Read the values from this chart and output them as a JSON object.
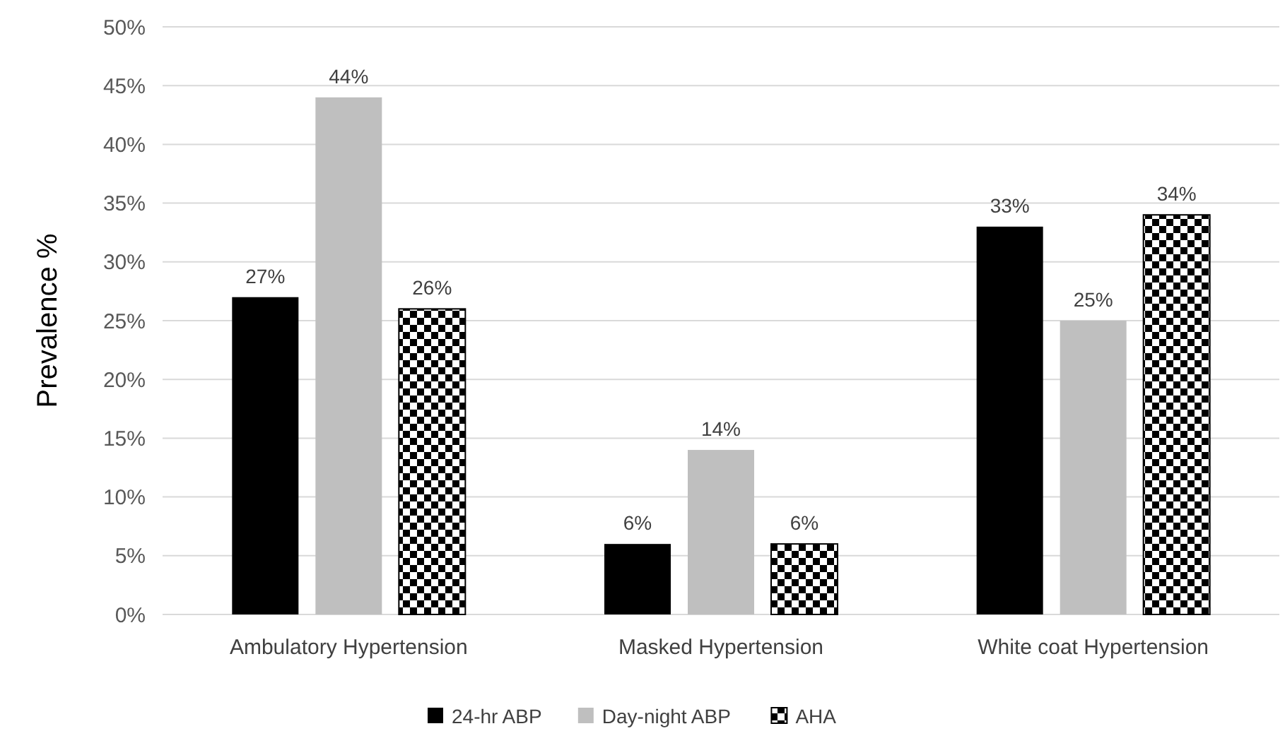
{
  "chart_data": {
    "type": "bar",
    "ylabel": "Prevalence %",
    "categories": [
      "Ambulatory Hypertension",
      "Masked Hypertension",
      "White coat Hypertension"
    ],
    "series": [
      {
        "name": "24-hr ABP",
        "color": "#000000",
        "values": [
          27,
          6,
          33
        ],
        "value_labels": [
          "27%",
          "6%",
          "33%"
        ]
      },
      {
        "name": "Day-night ABP",
        "color": "#bfbfbf",
        "values": [
          44,
          14,
          25
        ],
        "value_labels": [
          "44%",
          "14%",
          "25%"
        ]
      },
      {
        "name": "AHA",
        "color": "#000000",
        "values": [
          26,
          6,
          34
        ],
        "value_labels": [
          "26%",
          "6%",
          "34%"
        ]
      }
    ],
    "ylim": [
      0,
      50
    ],
    "yticks": [
      {
        "value": 0,
        "label": "0%"
      },
      {
        "value": 5,
        "label": "5%"
      },
      {
        "value": 10,
        "label": "10%"
      },
      {
        "value": 15,
        "label": "15%"
      },
      {
        "value": 20,
        "label": "20%"
      },
      {
        "value": 25,
        "label": "25%"
      },
      {
        "value": 30,
        "label": "30%"
      },
      {
        "value": 35,
        "label": "35%"
      },
      {
        "value": 40,
        "label": "40%"
      },
      {
        "value": 45,
        "label": "45%"
      },
      {
        "value": 50,
        "label": "50%"
      }
    ],
    "grid": "y",
    "legend": "bottom"
  }
}
